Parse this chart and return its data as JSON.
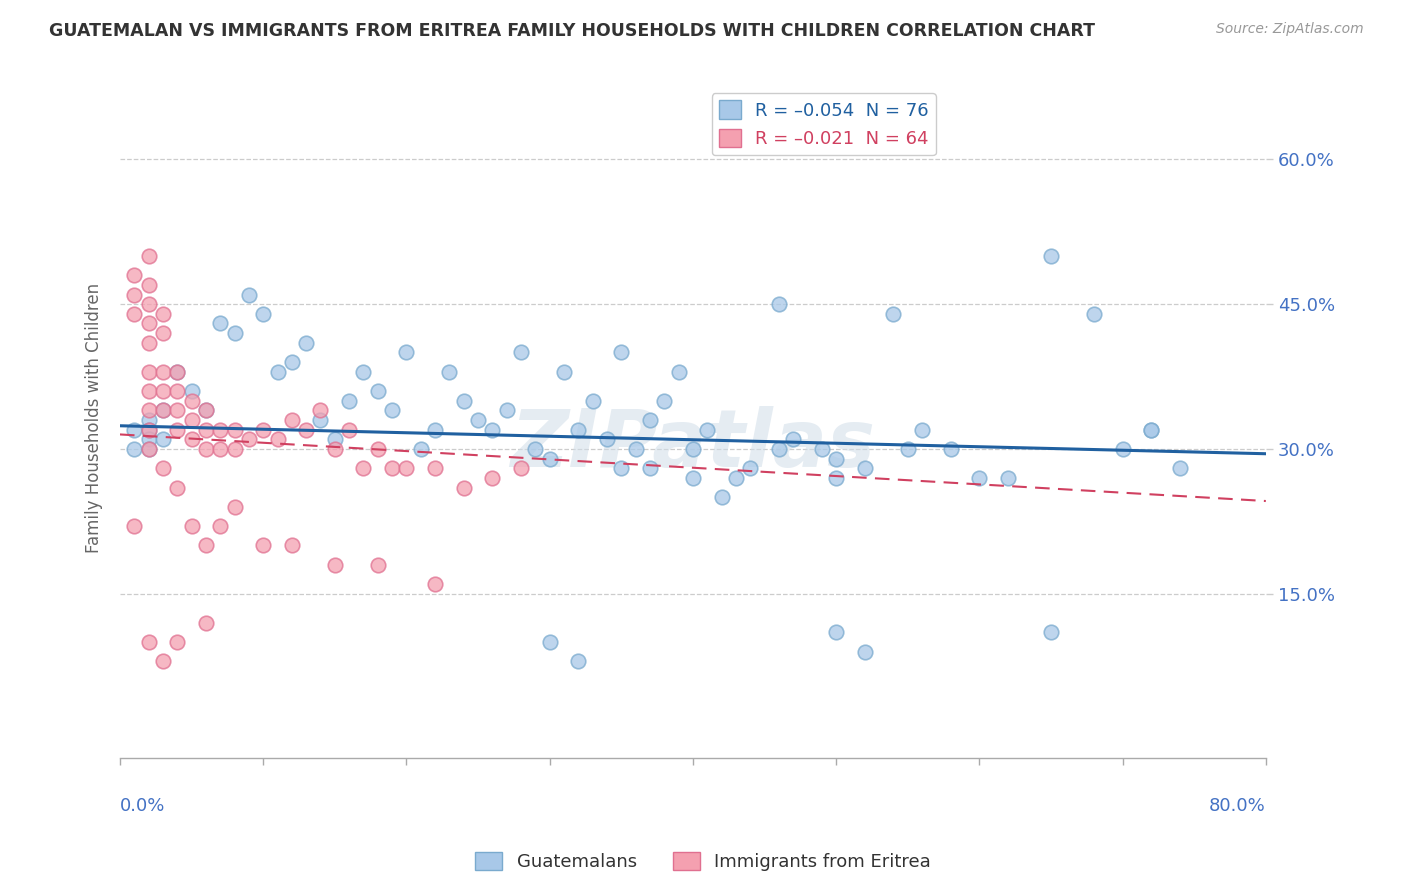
{
  "title": "GUATEMALAN VS IMMIGRANTS FROM ERITREA FAMILY HOUSEHOLDS WITH CHILDREN CORRELATION CHART",
  "source": "Source: ZipAtlas.com",
  "ylabel": "Family Households with Children",
  "right_ytick_vals": [
    0.15,
    0.3,
    0.45,
    0.6
  ],
  "xlim": [
    0.0,
    0.8
  ],
  "ylim": [
    -0.02,
    0.685
  ],
  "blue_color": "#a8c8e8",
  "pink_color": "#f4a0b0",
  "blue_line_color": "#2060a0",
  "pink_line_color": "#d04060",
  "blue_scatter_edge": "#7aaace",
  "pink_scatter_edge": "#e07090",
  "guatemalan_x": [
    0.01,
    0.01,
    0.02,
    0.02,
    0.02,
    0.02,
    0.03,
    0.03,
    0.04,
    0.05,
    0.06,
    0.07,
    0.08,
    0.09,
    0.1,
    0.11,
    0.12,
    0.13,
    0.14,
    0.15,
    0.16,
    0.17,
    0.18,
    0.19,
    0.2,
    0.21,
    0.22,
    0.23,
    0.24,
    0.25,
    0.26,
    0.27,
    0.28,
    0.29,
    0.3,
    0.31,
    0.32,
    0.33,
    0.34,
    0.35,
    0.36,
    0.37,
    0.38,
    0.39,
    0.4,
    0.41,
    0.42,
    0.44,
    0.46,
    0.47,
    0.49,
    0.5,
    0.52,
    0.54,
    0.56,
    0.58,
    0.62,
    0.65,
    0.68,
    0.72,
    0.35,
    0.37,
    0.4,
    0.43,
    0.46,
    0.5,
    0.55,
    0.6,
    0.65,
    0.7,
    0.72,
    0.74,
    0.5,
    0.52,
    0.3,
    0.32
  ],
  "guatemalan_y": [
    0.32,
    0.3,
    0.33,
    0.32,
    0.31,
    0.3,
    0.34,
    0.31,
    0.38,
    0.36,
    0.34,
    0.43,
    0.42,
    0.46,
    0.44,
    0.38,
    0.39,
    0.41,
    0.33,
    0.31,
    0.35,
    0.38,
    0.36,
    0.34,
    0.4,
    0.3,
    0.32,
    0.38,
    0.35,
    0.33,
    0.32,
    0.34,
    0.4,
    0.3,
    0.29,
    0.38,
    0.32,
    0.35,
    0.31,
    0.4,
    0.3,
    0.28,
    0.35,
    0.38,
    0.27,
    0.32,
    0.25,
    0.28,
    0.45,
    0.31,
    0.3,
    0.29,
    0.28,
    0.44,
    0.32,
    0.3,
    0.27,
    0.5,
    0.44,
    0.32,
    0.28,
    0.33,
    0.3,
    0.27,
    0.3,
    0.27,
    0.3,
    0.27,
    0.11,
    0.3,
    0.32,
    0.28,
    0.11,
    0.09,
    0.1,
    0.08
  ],
  "eritrea_x": [
    0.01,
    0.01,
    0.01,
    0.02,
    0.02,
    0.02,
    0.02,
    0.02,
    0.02,
    0.02,
    0.02,
    0.02,
    0.03,
    0.03,
    0.03,
    0.03,
    0.03,
    0.04,
    0.04,
    0.04,
    0.04,
    0.05,
    0.05,
    0.05,
    0.06,
    0.06,
    0.06,
    0.07,
    0.07,
    0.08,
    0.08,
    0.09,
    0.1,
    0.11,
    0.12,
    0.13,
    0.14,
    0.15,
    0.16,
    0.17,
    0.18,
    0.19,
    0.2,
    0.22,
    0.24,
    0.26,
    0.28,
    0.02,
    0.03,
    0.04,
    0.05,
    0.06,
    0.07,
    0.08,
    0.1,
    0.12,
    0.15,
    0.18,
    0.22,
    0.01,
    0.02,
    0.03,
    0.04,
    0.06
  ],
  "eritrea_y": [
    0.48,
    0.46,
    0.44,
    0.5,
    0.47,
    0.45,
    0.43,
    0.41,
    0.38,
    0.36,
    0.34,
    0.32,
    0.44,
    0.42,
    0.38,
    0.36,
    0.34,
    0.38,
    0.36,
    0.34,
    0.32,
    0.35,
    0.33,
    0.31,
    0.34,
    0.32,
    0.3,
    0.32,
    0.3,
    0.32,
    0.3,
    0.31,
    0.32,
    0.31,
    0.33,
    0.32,
    0.34,
    0.3,
    0.32,
    0.28,
    0.3,
    0.28,
    0.28,
    0.28,
    0.26,
    0.27,
    0.28,
    0.3,
    0.28,
    0.26,
    0.22,
    0.2,
    0.22,
    0.24,
    0.2,
    0.2,
    0.18,
    0.18,
    0.16,
    0.22,
    0.1,
    0.08,
    0.1,
    0.12
  ],
  "blue_trendline_x": [
    0.0,
    0.8
  ],
  "blue_trendline_y": [
    0.324,
    0.295
  ],
  "pink_trendline_x": [
    0.0,
    0.8
  ],
  "pink_trendline_y": [
    0.315,
    0.246
  ]
}
